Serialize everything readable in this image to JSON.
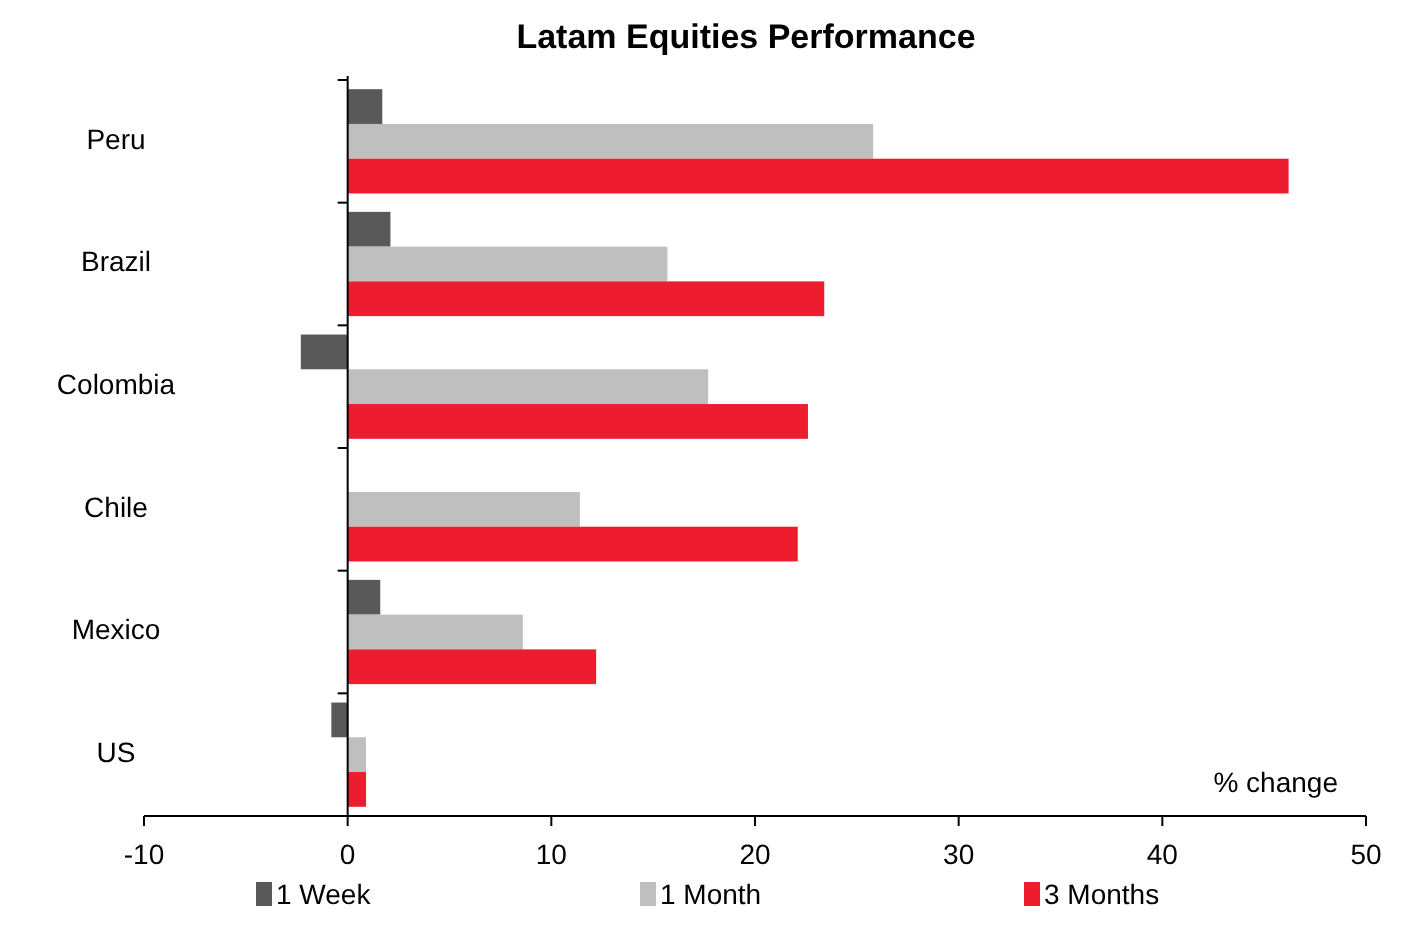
{
  "chart_data": {
    "type": "bar",
    "orientation": "horizontal",
    "title": "Latam Equities Performance",
    "xlabel": "% change",
    "categories": [
      "Peru",
      "Brazil",
      "Colombia",
      "Chile",
      "Mexico",
      "US"
    ],
    "series": [
      {
        "name": "1 Week",
        "color": "#595959",
        "values": [
          1.7,
          2.1,
          -2.3,
          0,
          1.6,
          -0.8
        ]
      },
      {
        "name": "1 Month",
        "color": "#bfbfbf",
        "values": [
          25.8,
          15.7,
          17.7,
          11.4,
          8.6,
          0.9
        ]
      },
      {
        "name": "3 Months",
        "color": "#ed1c2e",
        "values": [
          46.2,
          23.4,
          22.6,
          22.1,
          12.2,
          0.9
        ]
      }
    ],
    "xlim": [
      -10,
      50
    ],
    "xticks": [
      -10,
      0,
      10,
      20,
      30,
      40,
      50
    ],
    "legend": "bottom"
  }
}
